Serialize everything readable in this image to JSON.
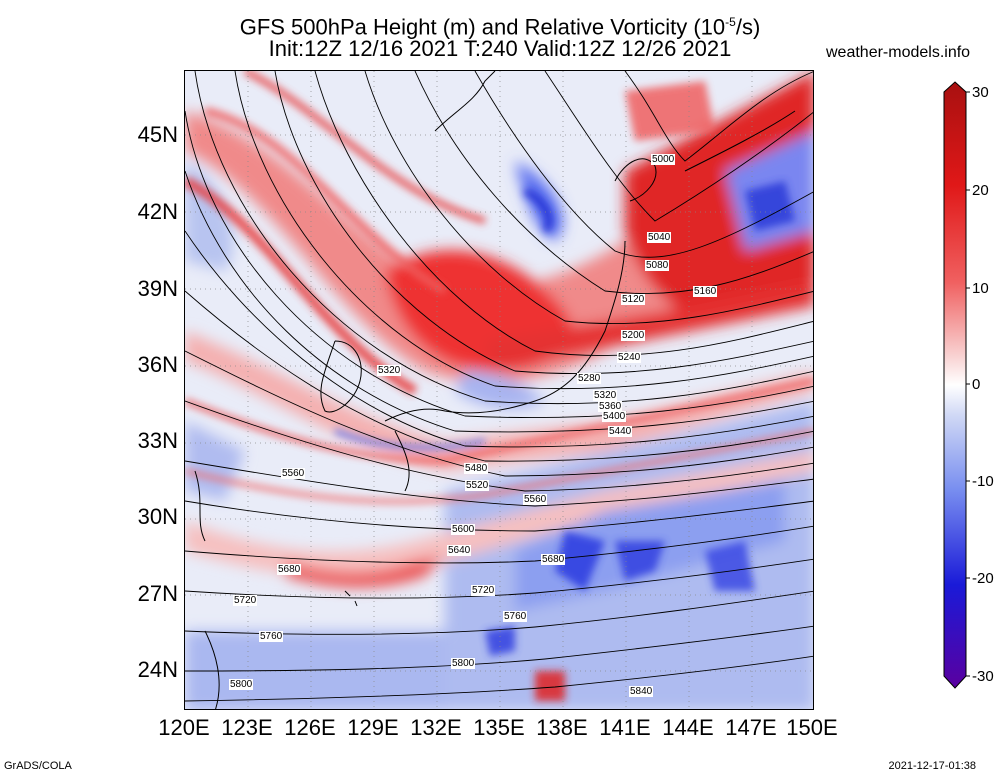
{
  "header": {
    "title_line1": "GFS 500hPa Height (m) and Relative Vorticity (10",
    "title_exp": "-5",
    "title_line1_end": "/s)",
    "title_line2": "Init:12Z 12/16 2021 T:240 Valid:12Z 12/26 2021",
    "site": "weather-models.info"
  },
  "footer": {
    "left": "GrADS/COLA",
    "right": "2021-12-17-01:38"
  },
  "axes": {
    "lat_labels": [
      "45N",
      "42N",
      "39N",
      "36N",
      "33N",
      "30N",
      "27N",
      "24N"
    ],
    "lon_labels": [
      "120E",
      "123E",
      "126E",
      "129E",
      "132E",
      "135E",
      "138E",
      "141E",
      "144E",
      "147E",
      "150E"
    ]
  },
  "colorbar": {
    "labels": [
      "30",
      "20",
      "10",
      "0",
      "-10",
      "-20",
      "-30"
    ],
    "colors": [
      "#5a00a0",
      "#1a10d8",
      "#3b5cff",
      "#8fa3f0",
      "#d7ddf5",
      "#ffffff",
      "#f5c8c8",
      "#f08080",
      "#f02020",
      "#d81818",
      "#a81010"
    ]
  },
  "contours": {
    "labels": [
      {
        "text": "5000"
      },
      {
        "text": "5040"
      },
      {
        "text": "5080"
      },
      {
        "text": "5160"
      },
      {
        "text": "5120"
      },
      {
        "text": "5200"
      },
      {
        "text": "5240"
      },
      {
        "text": "5280"
      },
      {
        "text": "5320"
      },
      {
        "text": "5320"
      },
      {
        "text": "5360"
      },
      {
        "text": "5400"
      },
      {
        "text": "5440"
      },
      {
        "text": "5480"
      },
      {
        "text": "5520"
      },
      {
        "text": "5560"
      },
      {
        "text": "5560"
      },
      {
        "text": "5600"
      },
      {
        "text": "5640"
      },
      {
        "text": "5680"
      },
      {
        "text": "5680"
      },
      {
        "text": "5720"
      },
      {
        "text": "5720"
      },
      {
        "text": "5760"
      },
      {
        "text": "5760"
      },
      {
        "text": "5800"
      },
      {
        "text": "5800"
      },
      {
        "text": "5840"
      }
    ]
  }
}
